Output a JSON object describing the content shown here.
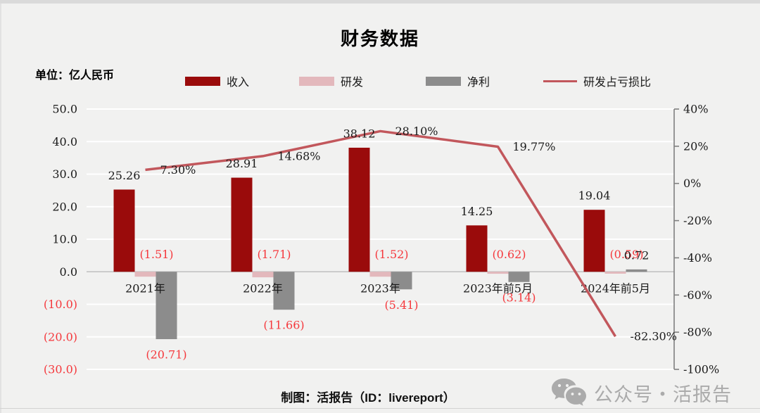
{
  "title": "财务数据",
  "unit_label": "单位：亿人民币",
  "footer_credit": "制图：活报告（ID：livereport）",
  "watermark_text": "公众号・活报告",
  "colors": {
    "revenue": "#9A0B0B",
    "rnd": "#E3B8BC",
    "net": "#8C8C8C",
    "ratio_line": "#C2575C",
    "negative_text": "#F5383C",
    "label_text": "#1A1A1A",
    "grid": "#FFFFFF",
    "zero_line": "#BFBFBF",
    "axis_line": "#7F7F7F",
    "background": "#F1F1F0",
    "watermark": "#ABABAB"
  },
  "chart_data": {
    "type": "bar",
    "subtype": "dual-axis-bars-plus-line",
    "title": "财务数据",
    "unit": "亿人民币",
    "categories": [
      "2021年",
      "2022年",
      "2023年",
      "2023年前5月",
      "2024年前5月"
    ],
    "series": [
      {
        "key": "revenue",
        "name": "收入",
        "kind": "bar",
        "axis": "left",
        "values": [
          25.26,
          28.91,
          38.12,
          14.25,
          19.04
        ],
        "labels": [
          "25.26",
          "28.91",
          "38.12",
          "14.25",
          "19.04"
        ]
      },
      {
        "key": "rnd",
        "name": "研发",
        "kind": "bar",
        "axis": "left",
        "values": [
          -1.51,
          -1.71,
          -1.52,
          -0.62,
          -0.59
        ],
        "labels": [
          "(1.51)",
          "(1.71)",
          "(1.52)",
          "(0.62)",
          "(0.59)"
        ]
      },
      {
        "key": "net",
        "name": "净利",
        "kind": "bar",
        "axis": "left",
        "values": [
          -20.71,
          -11.66,
          -5.41,
          -3.14,
          0.72
        ],
        "labels": [
          "(20.71)",
          "(11.66)",
          "(5.41)",
          "(3.14)",
          "0.72"
        ]
      },
      {
        "key": "ratio_line",
        "name": "研发占亏损比",
        "kind": "line",
        "axis": "right",
        "values": [
          7.3,
          14.68,
          28.1,
          19.77,
          -82.3
        ],
        "labels": [
          "7.30%",
          "14.68%",
          "28.10%",
          "19.77%",
          "-82.30%"
        ]
      }
    ],
    "left_axis": {
      "ticks": [
        "50.0",
        "40.0",
        "30.0",
        "20.0",
        "10.0",
        "0.0",
        "(10.0)",
        "(20.0)",
        "(30.0)"
      ],
      "tick_values": [
        50,
        40,
        30,
        20,
        10,
        0,
        -10,
        -20,
        -30
      ],
      "range": [
        -30,
        50
      ]
    },
    "right_axis": {
      "ticks": [
        "40%",
        "20%",
        "0%",
        "-20%",
        "-40%",
        "-60%",
        "-80%",
        "-100%"
      ],
      "tick_values": [
        40,
        20,
        0,
        -20,
        -40,
        -60,
        -80,
        -100
      ],
      "range": [
        -100,
        40
      ]
    },
    "grid": true,
    "legend_position": "top"
  }
}
